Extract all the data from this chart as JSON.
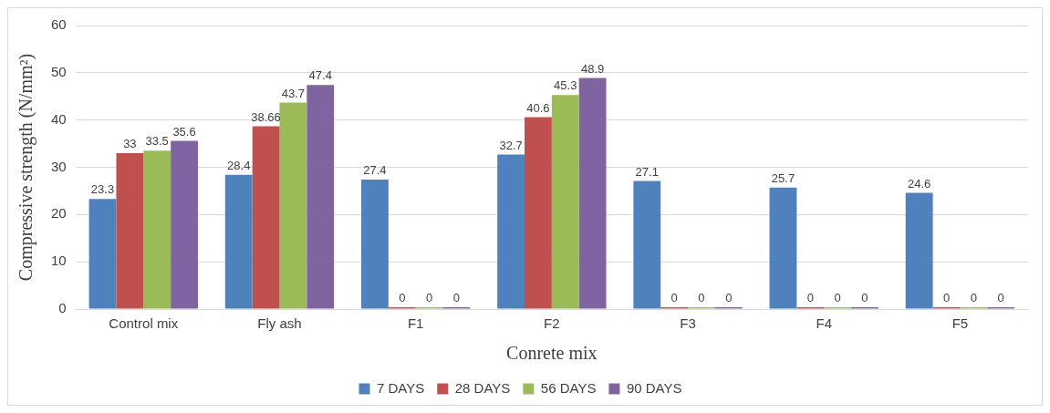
{
  "chart_data": {
    "type": "bar",
    "xlabel": "Conrete mix",
    "ylabel": "Compressive strength (N/mm²)",
    "categories": [
      "Control mix",
      "Fly ash",
      "F1",
      "F2",
      "F3",
      "F4",
      "F5"
    ],
    "series": [
      {
        "name": "7 DAYS",
        "color": "#4f81bd",
        "values": [
          23.3,
          28.4,
          27.4,
          32.7,
          27.1,
          25.7,
          24.6
        ]
      },
      {
        "name": "28 DAYS",
        "color": "#c0504d",
        "values": [
          33,
          38.66,
          0,
          40.6,
          0,
          0,
          0
        ]
      },
      {
        "name": "56 DAYS",
        "color": "#9bbb59",
        "values": [
          33.5,
          43.7,
          0,
          45.3,
          0,
          0,
          0
        ]
      },
      {
        "name": "90 DAYS",
        "color": "#8064a2",
        "values": [
          35.6,
          47.4,
          0,
          48.9,
          0,
          0,
          0
        ]
      }
    ],
    "ylim": [
      0,
      60
    ],
    "yticks": [
      0,
      10,
      20,
      30,
      40,
      50,
      60
    ],
    "grid": "y",
    "legend": "bottom",
    "data_labels": true
  }
}
